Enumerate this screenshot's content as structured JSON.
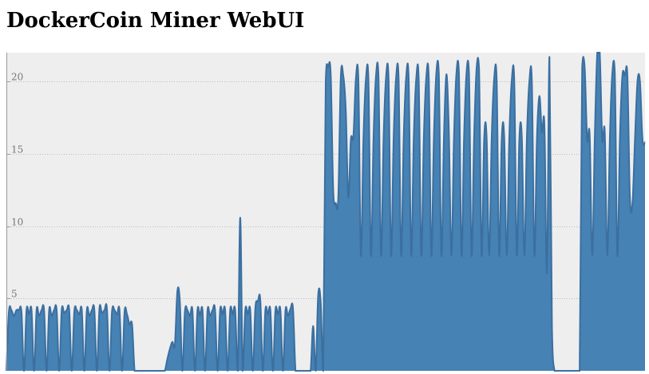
{
  "page": {
    "title": "DockerCoin Miner WebUI"
  },
  "colors": {
    "area_fill": "#4682b4",
    "area_stroke": "#3b6fa0",
    "plot_background": "#eeeeee",
    "grid": "#bbbbbb"
  },
  "chart_data": {
    "type": "area",
    "title": "",
    "xlabel": "",
    "ylabel": "",
    "ylim": [
      0,
      22
    ],
    "y_ticks": [
      5,
      10,
      15,
      20
    ],
    "grid": true,
    "legend": "none",
    "series": [
      {
        "values": [
          0,
          4.1,
          4.2,
          3.8,
          4.2,
          4.2,
          4.1,
          0,
          4.2,
          3.9,
          4.2,
          0,
          4.2,
          3.8,
          4.2,
          4.2,
          0,
          4.2,
          3.8,
          4.2,
          4.2,
          0,
          4.2,
          4.0,
          4.2,
          4.2,
          0,
          4.1,
          4.2,
          3.9,
          4.2,
          0,
          4.2,
          3.8,
          4.2,
          4.2,
          0,
          4.3,
          4.0,
          4.2,
          4.3,
          0,
          4.1,
          4.2,
          3.9,
          4.2,
          0,
          4.1,
          3.9,
          3.2,
          3.2,
          0,
          0,
          0,
          0,
          0,
          0,
          0,
          0,
          0,
          0,
          0,
          0,
          0,
          0.8,
          1.5,
          2.0,
          1.8,
          5.5,
          4.8,
          0,
          4.1,
          4.2,
          3.8,
          4.2,
          0,
          4.2,
          3.8,
          4.2,
          0,
          4.2,
          3.8,
          4.2,
          4.2,
          0,
          4.2,
          3.9,
          4.2,
          0,
          4.2,
          3.9,
          4.2,
          0,
          10.6,
          0,
          4.2,
          3.9,
          4.2,
          0,
          4.3,
          4.8,
          4.9,
          0,
          4.2,
          3.9,
          4.2,
          0,
          4.2,
          3.9,
          4.2,
          0,
          4.2,
          3.8,
          4.3,
          4.3,
          0,
          0,
          0,
          0,
          0,
          0,
          0,
          3.1,
          0,
          5.2,
          4.8,
          0,
          20.0,
          21.0,
          20.5,
          12.5,
          11.6,
          12.0,
          20.3,
          20.4,
          18.0,
          12.0,
          16.0,
          16.2,
          20.2,
          20.2,
          8.0,
          16.0,
          20.2,
          20.2,
          8.0,
          16.0,
          20.4,
          20.4,
          8.0,
          16.0,
          20.3,
          20.3,
          8.0,
          16.0,
          20.3,
          20.3,
          8.0,
          16.0,
          20.3,
          20.3,
          8.0,
          16.0,
          20.2,
          20.2,
          8.0,
          16.0,
          20.3,
          20.3,
          8.0,
          16.0,
          20.6,
          20.6,
          8.0,
          16.0,
          20.5,
          16.5,
          8.0,
          16.0,
          20.6,
          20.6,
          8.0,
          16.0,
          20.6,
          20.6,
          8.0,
          16.0,
          20.9,
          20.9,
          8.0,
          16.0,
          16.2,
          8.0,
          16.0,
          20.2,
          20.2,
          8.0,
          16.0,
          16.2,
          8.0,
          16.0,
          20.1,
          20.1,
          8.0,
          16.0,
          16.2,
          8.0,
          16.0,
          20.0,
          20.0,
          8.0,
          16.0,
          19.0,
          16.5,
          17.0,
          6.8,
          21.7,
          3.0,
          0,
          0,
          0,
          0,
          0,
          0,
          0,
          0,
          0,
          0,
          0,
          21.0,
          21.0,
          16.0,
          16.3,
          8.0,
          16.0,
          22.0,
          22.0,
          16.0,
          16.5,
          8.0,
          16.0,
          20.6,
          20.6,
          8.0,
          16.0,
          20.4,
          20.4,
          20.4,
          12.0,
          11.6,
          16.0,
          20.0,
          20.0,
          16.0,
          15.8
        ]
      }
    ]
  }
}
